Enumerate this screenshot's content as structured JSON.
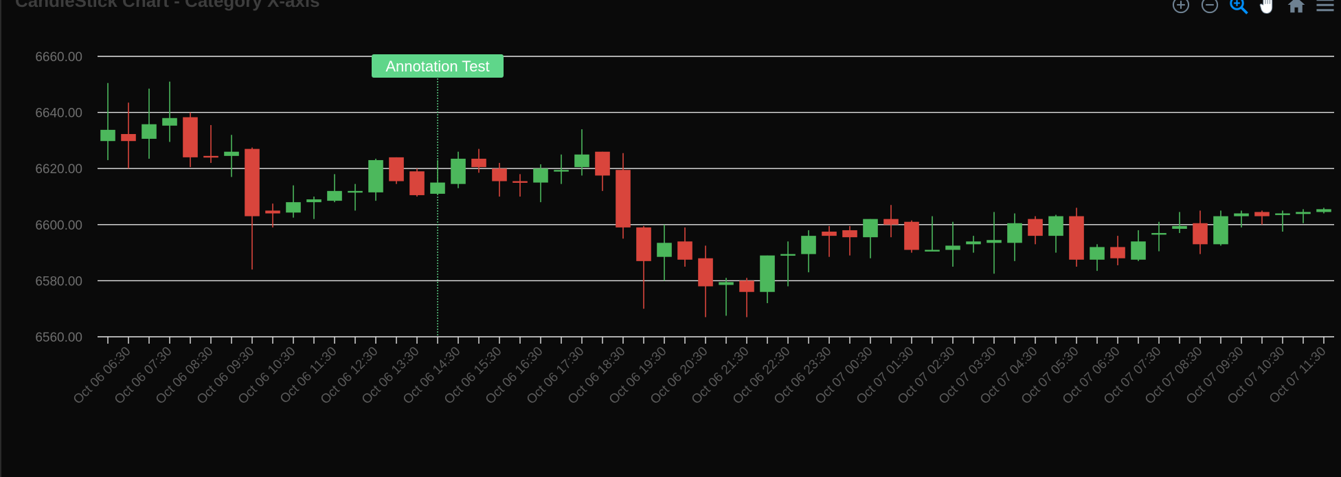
{
  "title": "CandleStick Chart - Category X-axis",
  "toolbar": {
    "icons": [
      "zoom-in-icon",
      "zoom-out-icon",
      "zoom-selection-icon",
      "pan-hand-icon",
      "reset-home-icon",
      "menu-icon"
    ],
    "active_color": "#008ffb",
    "inactive_color": "#6e8192"
  },
  "colors": {
    "background": "#0a0a0a",
    "grid": "#e6e6e6",
    "up": "#4cb85c",
    "down": "#d9453c",
    "annotation": "#5fd68a"
  },
  "annotation": {
    "text": "Annotation Test",
    "x": "Oct 06 14:00"
  },
  "chart_data": {
    "type": "candlestick",
    "title": "CandleStick Chart - Category X-axis",
    "ylim": [
      6560,
      6660
    ],
    "yticks": [
      "6660.00",
      "6640.00",
      "6620.00",
      "6600.00",
      "6580.00",
      "6560.00"
    ],
    "xtick_labels": [
      "Oct 06 06:30",
      "Oct 06 07:30",
      "Oct 06 08:30",
      "Oct 06 09:30",
      "Oct 06 10:30",
      "Oct 06 11:30",
      "Oct 06 12:30",
      "Oct 06 13:30",
      "Oct 06 14:30",
      "Oct 06 15:30",
      "Oct 06 16:30",
      "Oct 06 17:30",
      "Oct 06 18:30",
      "Oct 06 19:30",
      "Oct 06 20:30",
      "Oct 06 21:30",
      "Oct 06 22:30",
      "Oct 06 23:30",
      "Oct 07 00:30",
      "Oct 07 01:30",
      "Oct 07 02:30",
      "Oct 07 03:30",
      "Oct 07 04:30",
      "Oct 07 05:30",
      "Oct 07 06:30",
      "Oct 07 07:30",
      "Oct 07 08:30",
      "Oct 07 09:30",
      "Oct 07 10:30",
      "Oct 07 11:30"
    ],
    "grid": true,
    "series": [
      {
        "name": "candle",
        "data": [
          {
            "x": "Oct 06 06:00",
            "o": 6629.8,
            "h": 6650.5,
            "l": 6623.0,
            "c": 6633.8
          },
          {
            "x": "Oct 06 06:30",
            "o": 6632.3,
            "h": 6643.5,
            "l": 6620.0,
            "c": 6629.8
          },
          {
            "x": "Oct 06 07:00",
            "o": 6630.6,
            "h": 6648.5,
            "l": 6623.5,
            "c": 6635.8
          },
          {
            "x": "Oct 06 07:30",
            "o": 6635.3,
            "h": 6651.0,
            "l": 6629.5,
            "c": 6638.0
          },
          {
            "x": "Oct 06 08:00",
            "o": 6638.3,
            "h": 6640.0,
            "l": 6620.5,
            "c": 6624.0
          },
          {
            "x": "Oct 06 08:30",
            "o": 6624.5,
            "h": 6635.5,
            "l": 6622.0,
            "c": 6624.0
          },
          {
            "x": "Oct 06 09:00",
            "o": 6624.5,
            "h": 6632.0,
            "l": 6617.0,
            "c": 6626.0
          },
          {
            "x": "Oct 06 09:30",
            "o": 6627.0,
            "h": 6627.5,
            "l": 6584.0,
            "c": 6603.0
          },
          {
            "x": "Oct 06 10:00",
            "o": 6605.0,
            "h": 6607.5,
            "l": 6599.0,
            "c": 6604.0
          },
          {
            "x": "Oct 06 10:30",
            "o": 6604.3,
            "h": 6614.0,
            "l": 6602.5,
            "c": 6608.0
          },
          {
            "x": "Oct 06 11:00",
            "o": 6608.0,
            "h": 6610.0,
            "l": 6602.0,
            "c": 6609.0
          },
          {
            "x": "Oct 06 11:30",
            "o": 6608.5,
            "h": 6618.0,
            "l": 6608.0,
            "c": 6612.0
          },
          {
            "x": "Oct 06 12:00",
            "o": 6612.0,
            "h": 6614.5,
            "l": 6605.0,
            "c": 6612.0
          },
          {
            "x": "Oct 06 12:30",
            "o": 6611.5,
            "h": 6623.5,
            "l": 6608.5,
            "c": 6623.0
          },
          {
            "x": "Oct 06 13:00",
            "o": 6624.0,
            "h": 6624.0,
            "l": 6614.5,
            "c": 6615.5
          },
          {
            "x": "Oct 06 13:30",
            "o": 6619.0,
            "h": 6620.0,
            "l": 6610.0,
            "c": 6610.5
          },
          {
            "x": "Oct 06 14:00",
            "o": 6611.0,
            "h": 6623.0,
            "l": 6610.5,
            "c": 6615.0
          },
          {
            "x": "Oct 06 14:30",
            "o": 6614.5,
            "h": 6626.0,
            "l": 6613.0,
            "c": 6623.5
          },
          {
            "x": "Oct 06 15:00",
            "o": 6623.5,
            "h": 6627.0,
            "l": 6618.5,
            "c": 6620.5
          },
          {
            "x": "Oct 06 15:30",
            "o": 6620.0,
            "h": 6622.0,
            "l": 6610.0,
            "c": 6615.5
          },
          {
            "x": "Oct 06 16:00",
            "o": 6615.5,
            "h": 6618.0,
            "l": 6610.0,
            "c": 6615.0
          },
          {
            "x": "Oct 06 16:30",
            "o": 6615.0,
            "h": 6621.5,
            "l": 6608.0,
            "c": 6620.0
          },
          {
            "x": "Oct 06 17:00",
            "o": 6619.5,
            "h": 6625.0,
            "l": 6614.5,
            "c": 6619.5
          },
          {
            "x": "Oct 06 17:30",
            "o": 6620.5,
            "h": 6634.0,
            "l": 6617.5,
            "c": 6625.0
          },
          {
            "x": "Oct 06 18:00",
            "o": 6626.0,
            "h": 6626.0,
            "l": 6612.0,
            "c": 6617.5
          },
          {
            "x": "Oct 06 18:30",
            "o": 6619.5,
            "h": 6625.5,
            "l": 6595.0,
            "c": 6599.0
          },
          {
            "x": "Oct 06 19:00",
            "o": 6599.0,
            "h": 6599.5,
            "l": 6570.0,
            "c": 6587.0
          },
          {
            "x": "Oct 06 19:30",
            "o": 6588.5,
            "h": 6600.0,
            "l": 6580.0,
            "c": 6593.5
          },
          {
            "x": "Oct 06 20:00",
            "o": 6594.0,
            "h": 6599.0,
            "l": 6585.0,
            "c": 6587.5
          },
          {
            "x": "Oct 06 20:30",
            "o": 6588.0,
            "h": 6592.5,
            "l": 6567.0,
            "c": 6578.0
          },
          {
            "x": "Oct 06 21:00",
            "o": 6578.5,
            "h": 6581.0,
            "l": 6567.5,
            "c": 6579.5
          },
          {
            "x": "Oct 06 21:30",
            "o": 6580.0,
            "h": 6581.0,
            "l": 6567.0,
            "c": 6576.0
          },
          {
            "x": "Oct 06 22:00",
            "o": 6576.0,
            "h": 6589.0,
            "l": 6572.0,
            "c": 6589.0
          },
          {
            "x": "Oct 06 22:30",
            "o": 6589.0,
            "h": 6594.0,
            "l": 6578.0,
            "c": 6589.5
          },
          {
            "x": "Oct 06 23:00",
            "o": 6589.5,
            "h": 6598.0,
            "l": 6583.0,
            "c": 6596.0
          },
          {
            "x": "Oct 06 23:30",
            "o": 6597.5,
            "h": 6599.5,
            "l": 6588.5,
            "c": 6596.0
          },
          {
            "x": "Oct 07 00:00",
            "o": 6598.0,
            "h": 6599.5,
            "l": 6589.0,
            "c": 6595.5
          },
          {
            "x": "Oct 07 00:30",
            "o": 6595.5,
            "h": 6602.0,
            "l": 6588.0,
            "c": 6602.0
          },
          {
            "x": "Oct 07 01:00",
            "o": 6602.0,
            "h": 6607.0,
            "l": 6595.5,
            "c": 6600.0
          },
          {
            "x": "Oct 07 01:30",
            "o": 6601.0,
            "h": 6601.5,
            "l": 6590.0,
            "c": 6591.0
          },
          {
            "x": "Oct 07 02:00",
            "o": 6591.0,
            "h": 6603.0,
            "l": 6591.0,
            "c": 6591.0
          },
          {
            "x": "Oct 07 02:30",
            "o": 6591.0,
            "h": 6601.0,
            "l": 6585.0,
            "c": 6592.5
          },
          {
            "x": "Oct 07 03:00",
            "o": 6593.0,
            "h": 6596.0,
            "l": 6590.0,
            "c": 6594.0
          },
          {
            "x": "Oct 07 03:30",
            "o": 6593.5,
            "h": 6604.5,
            "l": 6582.5,
            "c": 6594.5
          },
          {
            "x": "Oct 07 04:00",
            "o": 6593.5,
            "h": 6604.0,
            "l": 6587.0,
            "c": 6600.5
          },
          {
            "x": "Oct 07 04:30",
            "o": 6602.0,
            "h": 6603.0,
            "l": 6593.0,
            "c": 6596.0
          },
          {
            "x": "Oct 07 05:00",
            "o": 6596.0,
            "h": 6603.5,
            "l": 6590.0,
            "c": 6603.0
          },
          {
            "x": "Oct 07 05:30",
            "o": 6603.0,
            "h": 6606.0,
            "l": 6585.0,
            "c": 6587.5
          },
          {
            "x": "Oct 07 06:00",
            "o": 6587.5,
            "h": 6593.0,
            "l": 6583.5,
            "c": 6592.0
          },
          {
            "x": "Oct 07 06:30",
            "o": 6592.0,
            "h": 6596.0,
            "l": 6585.5,
            "c": 6588.0
          },
          {
            "x": "Oct 07 07:00",
            "o": 6587.5,
            "h": 6598.0,
            "l": 6587.0,
            "c": 6594.0
          },
          {
            "x": "Oct 07 07:30",
            "o": 6596.5,
            "h": 6601.0,
            "l": 6590.5,
            "c": 6597.0
          },
          {
            "x": "Oct 07 08:00",
            "o": 6598.5,
            "h": 6604.5,
            "l": 6597.0,
            "c": 6599.5
          },
          {
            "x": "Oct 07 08:30",
            "o": 6600.5,
            "h": 6605.0,
            "l": 6589.5,
            "c": 6593.0
          },
          {
            "x": "Oct 07 09:00",
            "o": 6593.0,
            "h": 6605.0,
            "l": 6592.5,
            "c": 6603.0
          },
          {
            "x": "Oct 07 09:30",
            "o": 6603.0,
            "h": 6605.0,
            "l": 6599.0,
            "c": 6604.0
          },
          {
            "x": "Oct 07 10:00",
            "o": 6604.5,
            "h": 6605.0,
            "l": 6600.0,
            "c": 6603.0
          },
          {
            "x": "Oct 07 10:30",
            "o": 6603.5,
            "h": 6605.0,
            "l": 6597.5,
            "c": 6604.0
          },
          {
            "x": "Oct 07 11:00",
            "o": 6603.8,
            "h": 6605.5,
            "l": 6600.5,
            "c": 6604.5
          },
          {
            "x": "Oct 07 11:30",
            "o": 6604.5,
            "h": 6606.0,
            "l": 6604.0,
            "c": 6605.5
          }
        ]
      }
    ]
  }
}
